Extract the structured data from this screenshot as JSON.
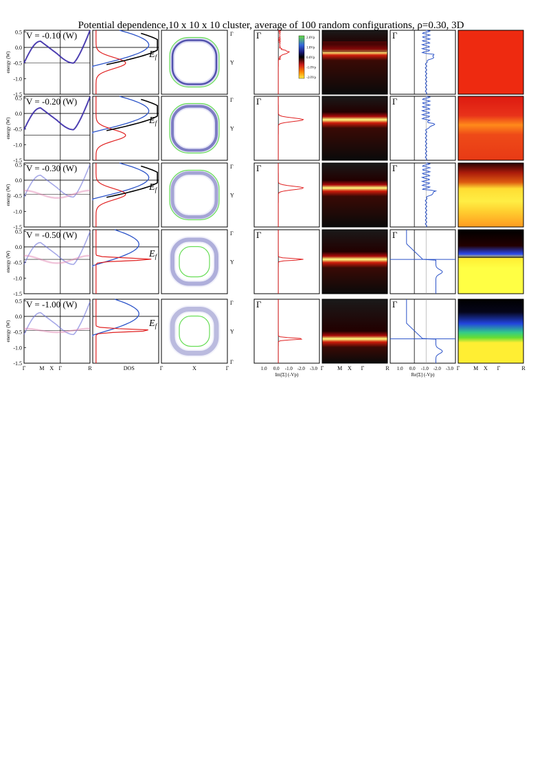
{
  "figure": {
    "title": "Potential dependence,10 x 10 x 10 cluster, average of 100 random configurations, ρ=0.30, 3D"
  },
  "colors": {
    "red_curve": "#e02020",
    "blue_curve": "#2a52c8",
    "black_curve": "#000000",
    "green_contour": "#66dd55",
    "fermi_line": "#000000"
  },
  "labels": {
    "ylabel": "energy (W)",
    "band_xticks": [
      "Γ",
      "M",
      "X",
      "Γ",
      "R"
    ],
    "dos_xlabel": "DOS",
    "ef_label": "E",
    "ef_sub": "f",
    "fs_xticks": [
      "Γ",
      "X",
      "Γ"
    ],
    "fs_yticks": [
      "Γ",
      "Y",
      "Γ"
    ],
    "gamma_label": "Γ",
    "im_xlabel": "Im[Σ] (-Vp)",
    "re_xlabel": "Re[Σ] (-Vp)",
    "sigma_xticks": [
      "1.0",
      "0.0",
      "-1.0",
      "-2.0",
      "-3.0"
    ],
    "map_xticks": [
      "Γ",
      "M",
      "X",
      "Γ",
      "R"
    ],
    "colorbar_ticks": [
      "2.0Vp",
      "1.0Vp",
      "0.0Vp",
      "-1.0Vp",
      "-2.0Vp"
    ]
  },
  "chart_data": {
    "type": "line",
    "yaxis": {
      "label": "energy (W)",
      "ticks": [
        "0.5",
        "0.0",
        "-0.5",
        "-1.0",
        "-1.5"
      ],
      "ylim": [
        -1.5,
        0.55
      ]
    },
    "rows": [
      {
        "label": "V = -0.10 (W)",
        "V": -0.1,
        "impurity_level": -0.5,
        "sigma_peak": -0.15,
        "re_level": null
      },
      {
        "label": "V = -0.20 (W)",
        "V": -0.2,
        "impurity_level": -0.7,
        "sigma_peak": -0.2,
        "re_level": null
      },
      {
        "label": "V = -0.30 (W)",
        "V": -0.3,
        "impurity_level": -0.45,
        "sigma_peak": -0.25,
        "re_level": null
      },
      {
        "label": "V = -0.50 (W)",
        "V": -0.5,
        "impurity_level": -0.4,
        "sigma_peak": -0.4,
        "re_level": -0.4
      },
      {
        "label": "V = -1.00 (W)",
        "V": -1.0,
        "impurity_level": -0.45,
        "sigma_peak": -0.72,
        "re_level": -0.72
      }
    ]
  }
}
